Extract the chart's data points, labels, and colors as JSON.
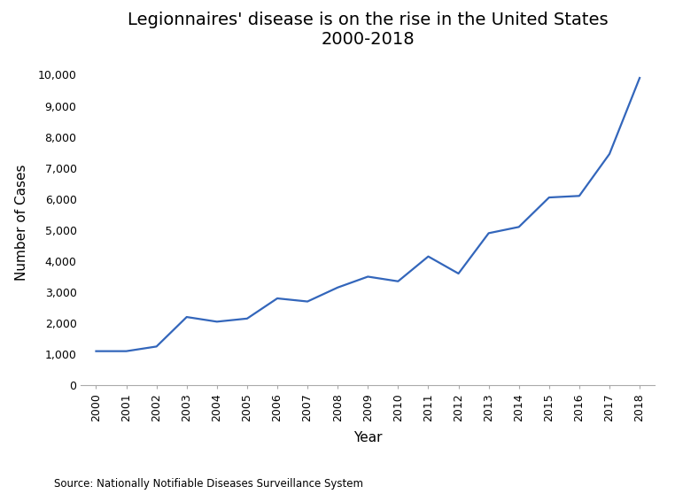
{
  "title_line1": "Legionnaires' disease is on the rise in the United States",
  "title_line2": "2000-2018",
  "xlabel": "Year",
  "ylabel": "Number of Cases",
  "source": "Source: Nationally Notifiable Diseases Surveillance System",
  "line_color": "#3366bb",
  "background_color": "#ffffff",
  "years": [
    2000,
    2001,
    2002,
    2003,
    2004,
    2005,
    2006,
    2007,
    2008,
    2009,
    2010,
    2011,
    2012,
    2013,
    2014,
    2015,
    2016,
    2017,
    2018
  ],
  "cases": [
    1100,
    1100,
    1250,
    2200,
    2050,
    2150,
    2800,
    2700,
    3150,
    3500,
    3350,
    4150,
    3600,
    4900,
    5100,
    6050,
    6100,
    7450,
    9900
  ],
  "ylim": [
    0,
    10500
  ],
  "yticks": [
    0,
    1000,
    2000,
    3000,
    4000,
    5000,
    6000,
    7000,
    8000,
    9000,
    10000
  ],
  "title_fontsize": 14,
  "label_fontsize": 11,
  "tick_fontsize": 9,
  "source_fontsize": 8.5,
  "line_width": 1.6
}
